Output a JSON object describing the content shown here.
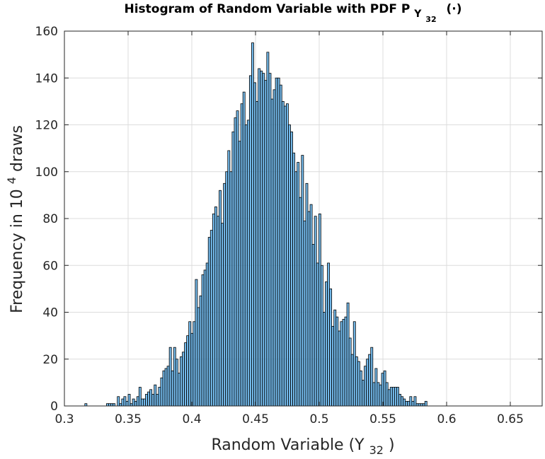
{
  "chart_data": {
    "type": "bar",
    "title": "Histogram of Random Variable with PDF P",
    "title_subscript": "Y",
    "title_sub_subscript": "32",
    "title_suffix": "(·)",
    "xlabel": "Random Variable (Y",
    "xlabel_subscript": "32",
    "xlabel_suffix": ")",
    "ylabel": "Frequency in 10",
    "ylabel_superscript": "4",
    "ylabel_suffix": " draws",
    "xlim": [
      0.3,
      0.675
    ],
    "ylim": [
      0,
      160
    ],
    "xticks": [
      "0.3",
      "0.35",
      "0.4",
      "0.45",
      "0.5",
      "0.55",
      "0.6",
      "0.65"
    ],
    "yticks": [
      "0",
      "20",
      "40",
      "60",
      "80",
      "100",
      "120",
      "140",
      "160"
    ],
    "grid": true,
    "bar_color": "#4da6e6",
    "bin_start": 0.316,
    "bin_width": 0.0017,
    "values": [
      1,
      0,
      0,
      0,
      0,
      0,
      0,
      0,
      0,
      0,
      1,
      1,
      1,
      1,
      0,
      4,
      1,
      3,
      4,
      2,
      5,
      1,
      3,
      2,
      4,
      8,
      3,
      3,
      5,
      6,
      7,
      5,
      9,
      5,
      8,
      12,
      15,
      16,
      17,
      25,
      15,
      25,
      20,
      14,
      21,
      23,
      27,
      30,
      36,
      31,
      36,
      54,
      42,
      47,
      56,
      58,
      61,
      72,
      75,
      82,
      85,
      81,
      92,
      78,
      95,
      100,
      109,
      100,
      117,
      123,
      126,
      113,
      129,
      134,
      120,
      122,
      141,
      155,
      138,
      130,
      144,
      143,
      142,
      139,
      151,
      142,
      131,
      135,
      140,
      140,
      137,
      130,
      128,
      129,
      120,
      117,
      108,
      100,
      104,
      89,
      107,
      79,
      95,
      83,
      86,
      69,
      81,
      61,
      82,
      60,
      40,
      53,
      61,
      50,
      34,
      41,
      38,
      32,
      36,
      37,
      38,
      44,
      29,
      22,
      36,
      21,
      19,
      15,
      11,
      17,
      20,
      22,
      25,
      10,
      16,
      10,
      9,
      14,
      15,
      10,
      7,
      8,
      8,
      8,
      8,
      5,
      4,
      3,
      2,
      2,
      4,
      2,
      4,
      1,
      1,
      1,
      1,
      2
    ]
  }
}
